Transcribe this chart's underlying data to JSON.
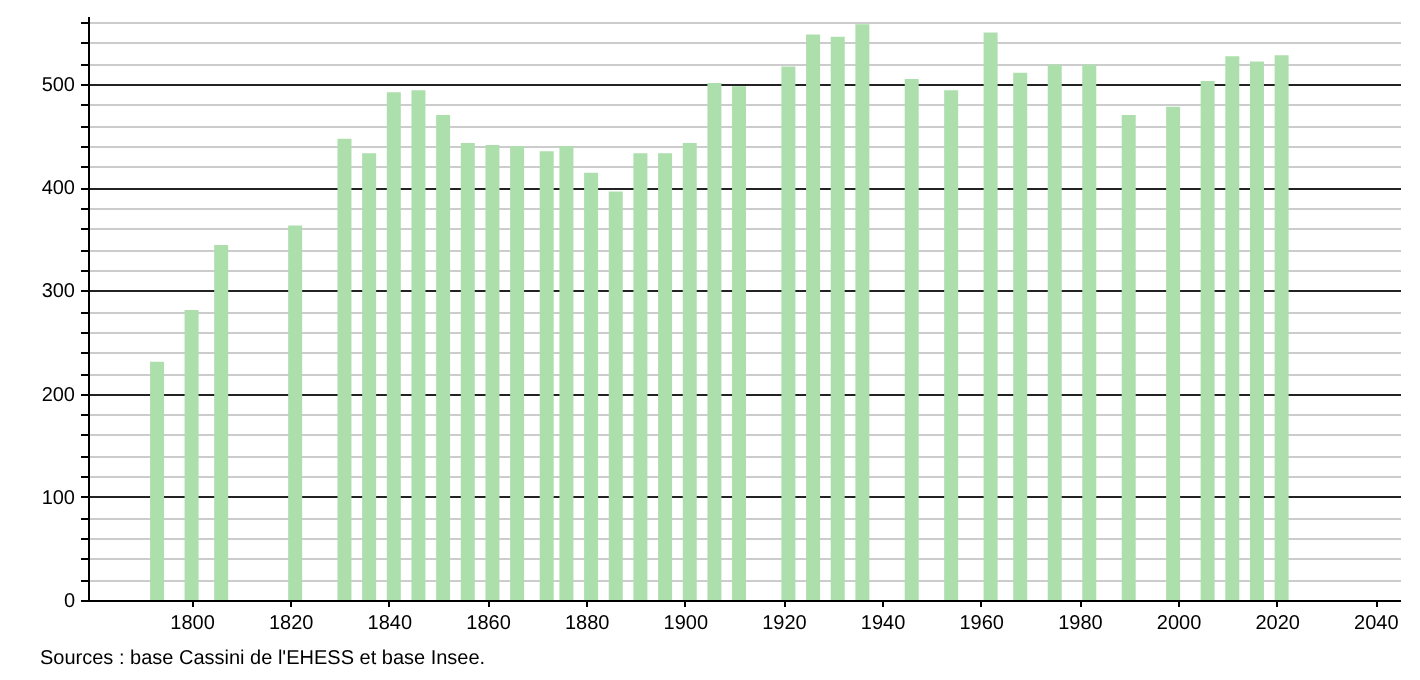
{
  "chart_data": {
    "type": "bar",
    "x": [
      1793,
      1800,
      1806,
      1821,
      1831,
      1836,
      1841,
      1846,
      1851,
      1856,
      1861,
      1866,
      1872,
      1876,
      1881,
      1886,
      1891,
      1896,
      1901,
      1906,
      1911,
      1921,
      1926,
      1931,
      1936,
      1946,
      1954,
      1962,
      1968,
      1975,
      1982,
      1990,
      1999,
      2006,
      2011,
      2016,
      2021
    ],
    "values": [
      231,
      281,
      344,
      363,
      447,
      433,
      492,
      494,
      470,
      443,
      441,
      440,
      435,
      440,
      414,
      396,
      433,
      433,
      443,
      501,
      498,
      517,
      548,
      546,
      558,
      505,
      494,
      550,
      511,
      519,
      519,
      470,
      478,
      503,
      527,
      522,
      528
    ],
    "color": "#addfad",
    "xlim": [
      1779,
      2045
    ],
    "xticks": [
      1800,
      1820,
      1840,
      1860,
      1880,
      1900,
      1920,
      1940,
      1960,
      1980,
      2000,
      2020,
      2040
    ],
    "ylim": [
      0,
      566
    ],
    "yticks": [
      0,
      {
        "value": 20,
        "label": null
      },
      {
        "value": 40,
        "label": null
      },
      {
        "value": 60,
        "label": null
      },
      {
        "value": 80,
        "label": null
      },
      100,
      {
        "value": 120,
        "label": null
      },
      {
        "value": 140,
        "label": null
      },
      {
        "value": 160,
        "label": null
      },
      {
        "value": 180,
        "label": null
      },
      200,
      {
        "value": 220,
        "label": null
      },
      {
        "value": 240,
        "label": null
      },
      {
        "value": 260,
        "label": null
      },
      {
        "value": 280,
        "label": null
      },
      300,
      {
        "value": 320,
        "label": null
      },
      {
        "value": 340,
        "label": null
      },
      {
        "value": 360,
        "label": null
      },
      {
        "value": 380,
        "label": null
      },
      400,
      {
        "value": 420,
        "label": null
      },
      {
        "value": 440,
        "label": null
      },
      {
        "value": 460,
        "label": null
      },
      {
        "value": 480,
        "label": null
      },
      500,
      {
        "value": 520,
        "label": null
      },
      {
        "value": 540,
        "label": null
      },
      {
        "value": 560,
        "label": null
      }
    ],
    "grid": "y",
    "annotations": [
      "Sources : base Cassini de l'EHESS et base Insee."
    ]
  }
}
